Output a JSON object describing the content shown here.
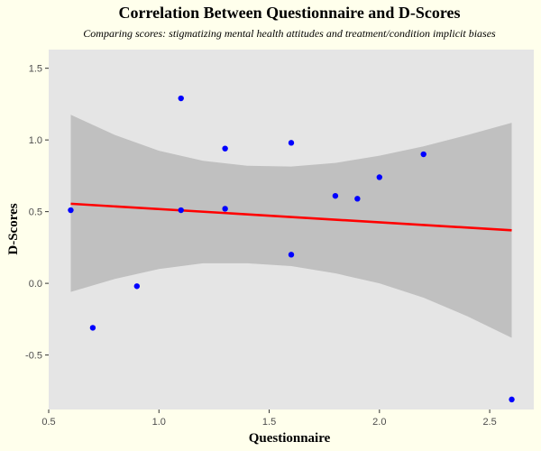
{
  "chart_data": {
    "type": "scatter",
    "title": "Correlation Between Questionnaire and D-Scores",
    "subtitle": "Comparing scores: stigmatizing mental health attitudes and treatment/condition implicit biases",
    "xlabel": "Questionnaire",
    "ylabel": "D-Scores",
    "xlim": [
      0.5,
      2.7
    ],
    "ylim": [
      -0.88,
      1.63
    ],
    "xticks": [
      0.5,
      1.0,
      1.5,
      2.0,
      2.5
    ],
    "xtick_labels": [
      "0.5",
      "1.0",
      "1.5",
      "2.0",
      "2.5"
    ],
    "yticks": [
      -0.5,
      0.0,
      0.5,
      1.0,
      1.5
    ],
    "ytick_labels": [
      "-0.5",
      "0.0",
      "0.5",
      "1.0",
      "1.5"
    ],
    "grid": false,
    "points": [
      {
        "x": 0.6,
        "y": 0.51
      },
      {
        "x": 0.7,
        "y": -0.31
      },
      {
        "x": 0.9,
        "y": -0.02
      },
      {
        "x": 1.1,
        "y": 1.29
      },
      {
        "x": 1.1,
        "y": 0.51
      },
      {
        "x": 1.3,
        "y": 0.94
      },
      {
        "x": 1.3,
        "y": 0.52
      },
      {
        "x": 1.6,
        "y": 0.98
      },
      {
        "x": 1.6,
        "y": 0.2
      },
      {
        "x": 1.8,
        "y": 0.61
      },
      {
        "x": 1.9,
        "y": 0.59
      },
      {
        "x": 2.0,
        "y": 0.74
      },
      {
        "x": 2.2,
        "y": 0.9
      },
      {
        "x": 2.6,
        "y": -0.81
      }
    ],
    "trend_line": {
      "x": [
        0.6,
        2.6
      ],
      "y": [
        0.555,
        0.37
      ]
    },
    "confidence_band": {
      "x": [
        0.6,
        0.8,
        1.0,
        1.2,
        1.4,
        1.6,
        1.8,
        2.0,
        2.2,
        2.4,
        2.6
      ],
      "upper": [
        1.175,
        1.035,
        0.925,
        0.855,
        0.82,
        0.815,
        0.84,
        0.89,
        0.955,
        1.035,
        1.12
      ],
      "lower": [
        -0.06,
        0.03,
        0.1,
        0.14,
        0.14,
        0.12,
        0.07,
        0.0,
        -0.1,
        -0.23,
        -0.38
      ]
    },
    "colors": {
      "background": "#FFFFEC",
      "panel": "#E5E5E5",
      "band": "#C0C0C0",
      "points": "#0000FF",
      "trend_line": "#FF0000"
    }
  }
}
